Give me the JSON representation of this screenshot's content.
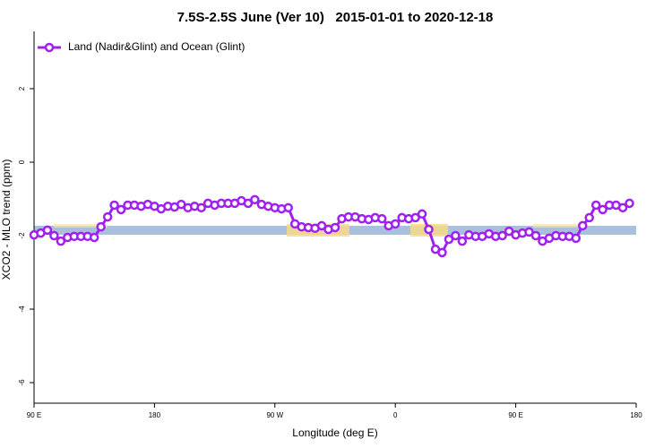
{
  "chart_data": {
    "type": "line",
    "title": "7.5S-2.5S June (Ver 10)   2015-01-01 to 2020-12-18",
    "x_label": "Longitude (deg E)",
    "y_label": "XCO2 - MLO trend (ppm)",
    "xlim": [
      90,
      540
    ],
    "ylim": [
      -6.56,
      3.56
    ],
    "xticks": [
      {
        "value": 90,
        "label": "90 E"
      },
      180,
      {
        "value": 270,
        "label": "90 W"
      },
      {
        "value": 360,
        "label": "0"
      },
      {
        "value": 450,
        "label": "90 E"
      },
      {
        "value": 540,
        "label": "180"
      }
    ],
    "yticks": [
      -6,
      -4,
      -2,
      0,
      2
    ],
    "legend": "top-left",
    "x": [
      90,
      95,
      100,
      105,
      110,
      115,
      120,
      125,
      130,
      135,
      140,
      145,
      150,
      155,
      160,
      165,
      170,
      175,
      180,
      185,
      190,
      195,
      200,
      205,
      210,
      215,
      220,
      225,
      230,
      235,
      240,
      245,
      250,
      255,
      260,
      265,
      270,
      275,
      280,
      285,
      290,
      295,
      300,
      305,
      310,
      315,
      320,
      325,
      330,
      335,
      340,
      345,
      350,
      355,
      360,
      365,
      370,
      375,
      380,
      385,
      390,
      395,
      400,
      405,
      410,
      415,
      420,
      425,
      430,
      435,
      440,
      445,
      450,
      455,
      460,
      465,
      470,
      475,
      480,
      485,
      490,
      495,
      500,
      505,
      510,
      515,
      520,
      525,
      530,
      535
    ],
    "series": [
      {
        "name": "Land (Nadir&Glint) and Ocean (Glint)",
        "color": "#a020f0",
        "values": [
          -1.98,
          -1.93,
          -1.85,
          -2.0,
          -2.15,
          -2.05,
          -2.02,
          -2.02,
          -2.02,
          -2.05,
          -1.76,
          -1.49,
          -1.17,
          -1.29,
          -1.17,
          -1.17,
          -1.2,
          -1.15,
          -1.2,
          -1.27,
          -1.2,
          -1.22,
          -1.15,
          -1.24,
          -1.2,
          -1.24,
          -1.12,
          -1.17,
          -1.12,
          -1.12,
          -1.12,
          -1.05,
          -1.12,
          -1.02,
          -1.15,
          -1.2,
          -1.24,
          -1.27,
          -1.24,
          -1.68,
          -1.76,
          -1.78,
          -1.8,
          -1.73,
          -1.83,
          -1.78,
          -1.54,
          -1.49,
          -1.49,
          -1.54,
          -1.56,
          -1.51,
          -1.54,
          -1.73,
          -1.68,
          -1.51,
          -1.54,
          -1.51,
          -1.41,
          -1.83,
          -2.37,
          -2.46,
          -2.1,
          -2.0,
          -2.15,
          -1.98,
          -2.02,
          -2.02,
          -1.95,
          -2.02,
          -2.0,
          -1.88,
          -1.98,
          -1.93,
          -1.9,
          -2.0,
          -2.15,
          -2.07,
          -2.0,
          -2.02,
          -2.02,
          -2.07,
          -1.73,
          -1.51,
          -1.17,
          -1.29,
          -1.17,
          -1.17,
          -1.24,
          -1.12
        ]
      }
    ]
  }
}
